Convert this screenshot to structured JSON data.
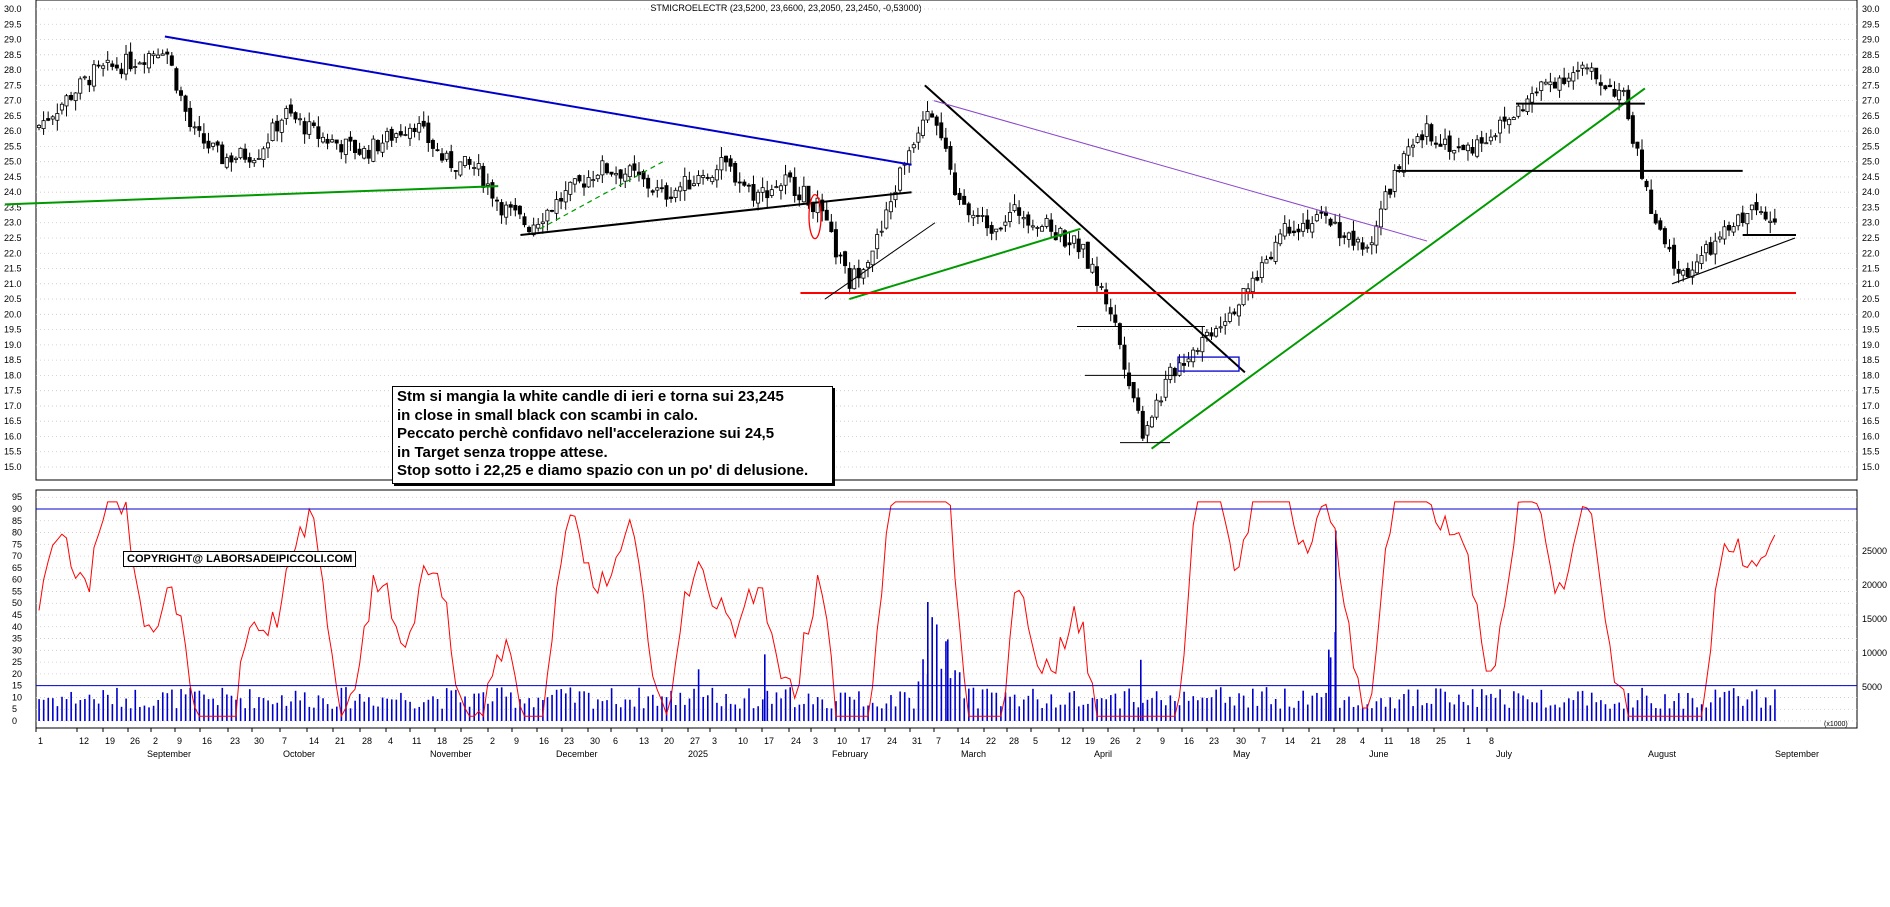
{
  "chart_data": [
    {
      "type": "candlestick",
      "title": "STMICROELECTR (23,5200, 23,6600, 23,2050, 23,2450, -0,53000)",
      "ylim": [
        15.0,
        30.0
      ],
      "y_ticks": [
        "30.0",
        "29.5",
        "29.0",
        "28.5",
        "28.0",
        "27.5",
        "27.0",
        "26.5",
        "26.0",
        "25.5",
        "25.0",
        "24.5",
        "24.0",
        "23.5",
        "23.0",
        "22.5",
        "22.0",
        "21.5",
        "21.0",
        "20.5",
        "20.0",
        "19.5",
        "19.0",
        "18.5",
        "18.0",
        "17.5",
        "17.0",
        "16.5",
        "16.0",
        "15.5",
        "15.0"
      ],
      "grid": true,
      "x_day_labels": [
        "1",
        "12",
        "19",
        "26",
        "2",
        "9",
        "16",
        "23",
        "30",
        "7",
        "14",
        "21",
        "28",
        "4",
        "11",
        "18",
        "25",
        "2",
        "9",
        "16",
        "23",
        "30",
        "6",
        "13",
        "20",
        "27",
        "3",
        "10",
        "17",
        "24",
        "3",
        "10",
        "17",
        "24",
        "31",
        "7",
        "14",
        "22",
        "28",
        "5",
        "12",
        "19",
        "26",
        "2",
        "9",
        "16",
        "23",
        "30",
        "7",
        "14",
        "21",
        "28",
        "4",
        "11",
        "18",
        "25",
        "1",
        "8"
      ],
      "x_month_labels": [
        "September",
        "October",
        "November",
        "December",
        "2025",
        "February",
        "March",
        "April",
        "May",
        "June",
        "July",
        "August",
        "September"
      ],
      "trendlines": [
        {
          "name": "blue-resistance",
          "color": "#0000cc",
          "from": [
            "2024-08-30",
            29.1
          ],
          "to": [
            "2025-02-14",
            24.9
          ]
        },
        {
          "name": "green-support-left",
          "color": "#009900",
          "from": [
            "2024-07-25",
            23.6
          ],
          "to": [
            "2024-11-13",
            24.2
          ]
        },
        {
          "name": "black-support",
          "color": "#000000",
          "from": [
            "2024-11-18",
            22.6
          ],
          "to": [
            "2025-02-14",
            24.0
          ]
        },
        {
          "name": "black-downtrend",
          "color": "#000000",
          "from": [
            "2025-02-17",
            27.5
          ],
          "to": [
            "2025-04-30",
            18.1
          ]
        },
        {
          "name": "purple-downtrend",
          "color": "#8844cc",
          "from": [
            "2025-02-19",
            27.0
          ],
          "to": [
            "2025-06-10",
            22.4
          ]
        },
        {
          "name": "green-uptrend-march",
          "color": "#009900",
          "from": [
            "2025-01-31",
            20.5
          ],
          "to": [
            "2025-03-24",
            22.8
          ]
        },
        {
          "name": "green-uptrend-main",
          "color": "#009900",
          "from": [
            "2025-04-09",
            15.6
          ],
          "to": [
            "2025-07-29",
            27.4
          ]
        },
        {
          "name": "red-horizontal",
          "color": "#ff0000",
          "from": [
            "2025-01-20",
            20.7
          ],
          "to": [
            "2025-09-01",
            20.7
          ]
        },
        {
          "name": "black-horizontal-june",
          "color": "#000000",
          "from": [
            "2025-06-03",
            24.7
          ],
          "to": [
            "2025-08-20",
            24.7
          ]
        },
        {
          "name": "black-horizontal-july",
          "color": "#000000",
          "from": [
            "2025-06-30",
            26.9
          ],
          "to": [
            "2025-07-29",
            26.9
          ]
        },
        {
          "name": "black-horizontal-august",
          "color": "#000000",
          "from": [
            "2025-08-20",
            22.6
          ],
          "to": [
            "2025-09-01",
            22.6
          ]
        }
      ],
      "annotation": {
        "lines": [
          "Stm si mangia la white candle di ieri e torna sui 23,245",
          "in close in small  black con scambi in calo.",
          "Peccato perchè confidavo nell'accelerazione sui 24,5",
          "in Target senza troppe attese.",
          "Stop sotto i 22,25 e diamo spazio con un po' di delusione."
        ]
      },
      "copyright": "COPYRIGHT@ LABORSADEIPICCOLI.COM"
    },
    {
      "type": "line+bar",
      "y_ticks_left": [
        "95",
        "90",
        "85",
        "80",
        "75",
        "70",
        "65",
        "60",
        "55",
        "50",
        "45",
        "40",
        "35",
        "30",
        "25",
        "20",
        "15",
        "10",
        "5",
        "0"
      ],
      "ylim_left": [
        0,
        95
      ],
      "y_ticks_right": [
        "25000",
        "20000",
        "15000",
        "10000",
        "5000"
      ],
      "ylim_right": [
        0,
        28000
      ],
      "right_unit_label": "(x1000)",
      "horizontal_levels_left": [
        90,
        15
      ],
      "series": [
        {
          "name": "",
          "kind": "line",
          "color": "#ff0000",
          "values_source": "oscillator"
        },
        {
          "name": "",
          "kind": "bar",
          "color": "#0000cc",
          "values_source": "volume"
        }
      ]
    }
  ],
  "colors": {
    "grid": "#c8c8c8",
    "candle_up": "#ffffff",
    "candle_down": "#000000",
    "oscillator": "#ff0000",
    "volume": "#0000cc",
    "level_line": "#0000cc"
  }
}
